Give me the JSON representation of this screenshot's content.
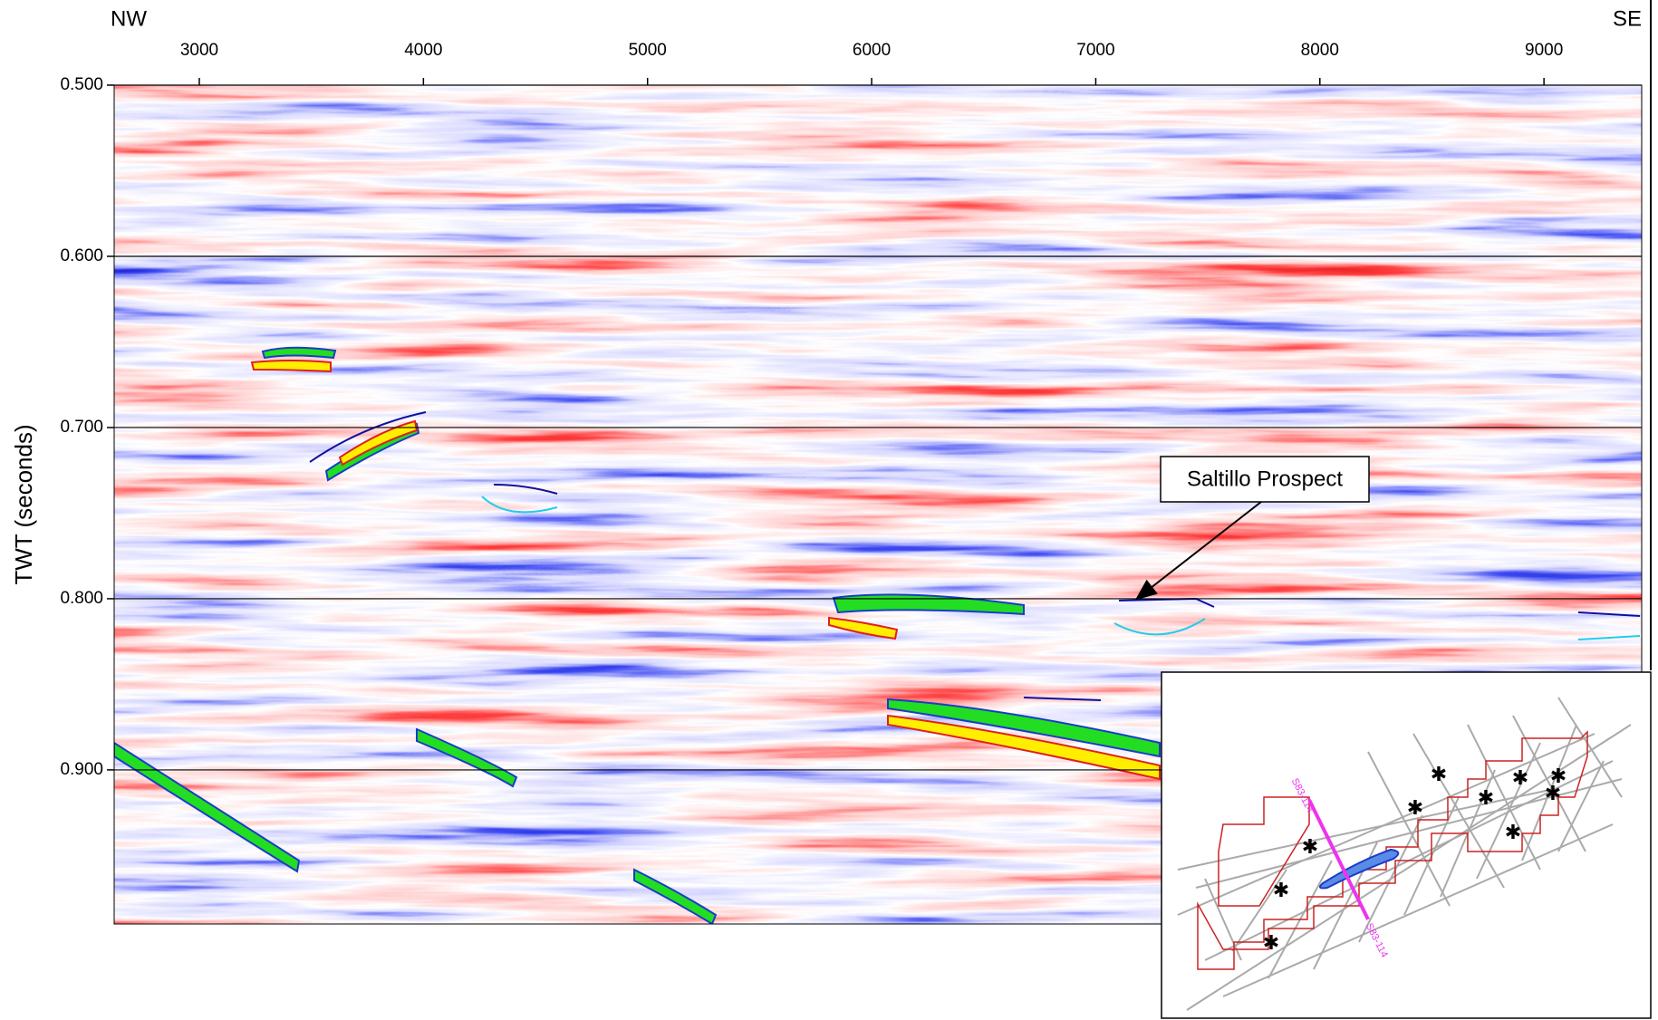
{
  "chart_data": {
    "type": "seismic",
    "left_label": "NW",
    "right_label": "SE",
    "y_label": "TWT (seconds)",
    "xlim": [
      2620,
      9436
    ],
    "xticks": [
      3000,
      4000,
      5000,
      6000,
      7000,
      8000,
      9000
    ],
    "ylim": [
      0.5,
      0.99
    ],
    "y_reversed": true,
    "yticks": [
      {
        "value": 0.5,
        "label": "0.500"
      },
      {
        "value": 0.6,
        "label": "0.600"
      },
      {
        "value": 0.7,
        "label": "0.700"
      },
      {
        "value": 0.8,
        "label": "0.800"
      },
      {
        "value": 0.9,
        "label": "0.900"
      }
    ],
    "grid": true,
    "annotation": "Saltillo Prospect",
    "inset_labels": [
      "S83-114",
      "S83-114"
    ]
  }
}
